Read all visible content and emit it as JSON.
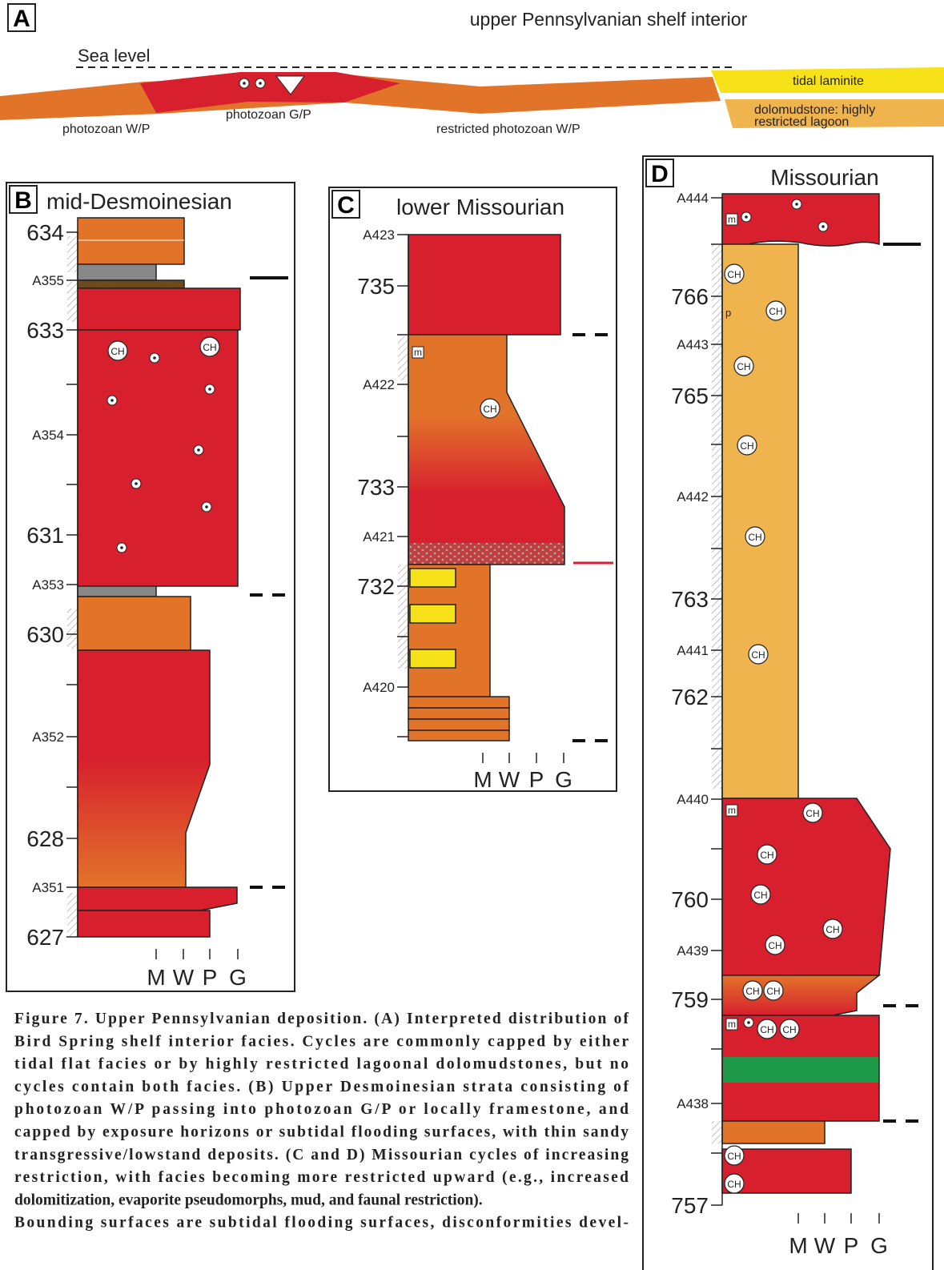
{
  "panel_a": {
    "letter": "A",
    "title": "upper Pennsylvanian shelf interior",
    "sea_level": "Sea level",
    "facies": [
      "photozoan W/P",
      "photozoan G/P",
      "restricted photozoan W/P",
      "tidal laminite"
    ],
    "lagoon": [
      "dolomudstone: highly",
      "restricted lagoon"
    ]
  },
  "panel_b": {
    "letter": "B",
    "title": "mid-Desmoinesian",
    "depth_labels": [
      "634",
      "A355",
      "633",
      "A354",
      "631",
      "A353",
      "630",
      "A352",
      "628",
      "A351",
      "627"
    ],
    "scale": [
      "M",
      "W",
      "P",
      "G"
    ]
  },
  "panel_c": {
    "letter": "C",
    "title": "lower Missourian",
    "depth_labels": [
      "A423",
      "735",
      "A422",
      "733",
      "A421",
      "732",
      "A420"
    ],
    "scale": [
      "M",
      "W",
      "P",
      "G"
    ]
  },
  "panel_d": {
    "letter": "D",
    "title": "Missourian",
    "depth_labels": [
      "A444",
      "766",
      "A443",
      "765",
      "A442",
      "763",
      "A441",
      "762",
      "A440",
      "760",
      "A439",
      "759",
      "A438",
      "757"
    ],
    "scale": [
      "M",
      "W",
      "P",
      "G"
    ]
  },
  "symbols": {
    "chert": "CH",
    "mud": "m",
    "peloid": "p"
  },
  "caption": {
    "lines": [
      "Figure 7. Upper Pennsylvanian deposition. (A) Interpreted distribution of",
      "Bird Spring shelf interior facies. Cycles are commonly capped by either",
      "tidal flat facies or by highly restricted lagoonal dolomudstones, but no",
      "cycles contain both facies. (B) Upper Desmoinesian strata consisting of",
      "photozoan W/P passing into photozoan G/P or locally framestone, and",
      "capped by exposure horizons or subtidal flooding surfaces, with thin sandy",
      "transgressive/lowstand deposits. (C and D) Missourian cycles of increasing",
      "restriction, with facies becoming more restricted upward (e.g., increased",
      "dolomitization, evaporite pseudomorphs, mud, and faunal restriction).",
      "Bounding surfaces are subtidal flooding surfaces, disconformities devel-"
    ]
  }
}
